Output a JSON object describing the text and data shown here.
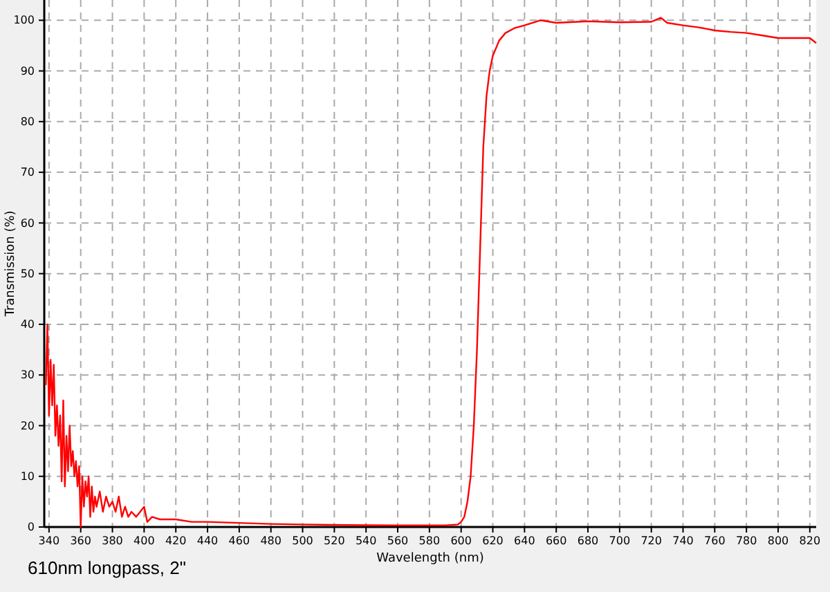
{
  "chart_data": {
    "type": "line",
    "xlabel": "Wavelength (nm)",
    "ylabel": "Transmission (%)",
    "annotations": [
      "610nm longpass, 2\""
    ],
    "xlim": [
      337,
      824
    ],
    "ylim": [
      0,
      104
    ],
    "xticks": [
      340,
      360,
      380,
      400,
      420,
      440,
      460,
      480,
      500,
      520,
      540,
      560,
      580,
      600,
      620,
      640,
      660,
      680,
      700,
      720,
      740,
      760,
      780,
      800,
      820
    ],
    "yticks": [
      0,
      10,
      20,
      30,
      40,
      50,
      60,
      70,
      80,
      90,
      100
    ],
    "grid": true,
    "marker": "none",
    "line_style": "solid",
    "series": [
      {
        "color": "#ff0000",
        "x": [
          338,
          339,
          340,
          341,
          342,
          343,
          344,
          345,
          346,
          347,
          348,
          349,
          350,
          351,
          352,
          353,
          354,
          355,
          356,
          357,
          358,
          359,
          360,
          361,
          362,
          363,
          364,
          365,
          366,
          367,
          368,
          369,
          370,
          372,
          374,
          376,
          378,
          380,
          382,
          384,
          386,
          388,
          390,
          392,
          395,
          400,
          402,
          405,
          410,
          420,
          430,
          440,
          460,
          480,
          500,
          520,
          560,
          590,
          598,
          600,
          602,
          604,
          606,
          608,
          610,
          612,
          613,
          614,
          616,
          618,
          620,
          624,
          628,
          634,
          640,
          650,
          660,
          680,
          700,
          720,
          726,
          730,
          740,
          750,
          760,
          770,
          780,
          790,
          800,
          810,
          820,
          824
        ],
        "values": [
          28,
          40,
          22,
          33,
          24,
          32,
          18,
          24,
          16,
          22,
          9,
          25,
          8,
          18,
          11,
          20,
          12,
          15,
          10,
          13,
          8,
          12,
          0,
          10,
          4,
          9,
          6,
          10,
          2,
          8,
          3,
          6,
          4,
          7,
          3,
          6,
          4,
          5,
          3,
          6,
          2,
          4,
          2,
          3,
          2,
          4,
          1,
          2,
          1.5,
          1.5,
          1,
          1,
          0.8,
          0.6,
          0.5,
          0.4,
          0.3,
          0.3,
          0.5,
          1,
          2,
          5,
          10,
          20,
          35,
          55,
          65,
          75,
          85,
          90,
          93,
          96,
          97.5,
          98.5,
          99,
          100,
          99.5,
          99.8,
          99.6,
          99.7,
          100.5,
          99.5,
          99,
          98.6,
          98,
          97.7,
          97.5,
          97,
          96.5,
          96.5,
          96.5,
          95.5
        ]
      }
    ]
  }
}
